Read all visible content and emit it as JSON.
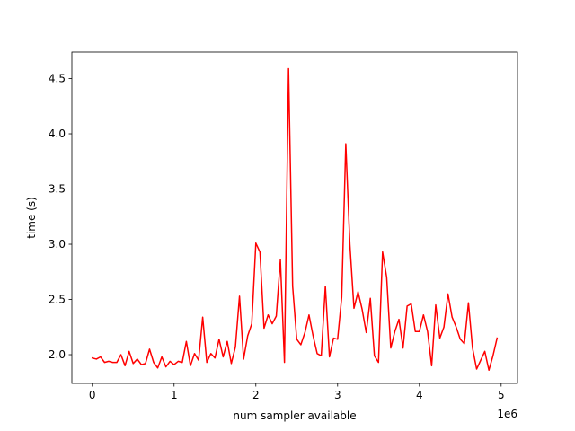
{
  "chart_data": {
    "type": "line",
    "title": "",
    "xlabel": "num sampler available",
    "ylabel": "time (s)",
    "x_offset_label": "1e6",
    "xlim": [
      -0.25,
      5.2
    ],
    "ylim": [
      1.74,
      4.74
    ],
    "x_ticks": [
      0,
      1,
      2,
      3,
      4,
      5
    ],
    "x_tick_labels": [
      "0",
      "1",
      "2",
      "3",
      "4",
      "5"
    ],
    "y_ticks": [
      2.0,
      2.5,
      3.0,
      3.5,
      4.0,
      4.5
    ],
    "y_tick_labels": [
      "2.0",
      "2.5",
      "3.0",
      "3.5",
      "4.0",
      "4.5"
    ],
    "grid": false,
    "line_color": "#ff0000",
    "series": [
      {
        "x": [
          0.0,
          0.05,
          0.1,
          0.15,
          0.2,
          0.25,
          0.3,
          0.35,
          0.4,
          0.45,
          0.5,
          0.55,
          0.6,
          0.65,
          0.7,
          0.75,
          0.8,
          0.85,
          0.9,
          0.95,
          1.0,
          1.05,
          1.1,
          1.15,
          1.2,
          1.25,
          1.3,
          1.35,
          1.4,
          1.45,
          1.5,
          1.55,
          1.6,
          1.65,
          1.7,
          1.75,
          1.8,
          1.85,
          1.9,
          1.95,
          2.0,
          2.05,
          2.1,
          2.15,
          2.2,
          2.25,
          2.3,
          2.35,
          2.4,
          2.45,
          2.5,
          2.55,
          2.6,
          2.65,
          2.7,
          2.75,
          2.8,
          2.85,
          2.9,
          2.95,
          3.0,
          3.05,
          3.1,
          3.15,
          3.2,
          3.25,
          3.3,
          3.35,
          3.4,
          3.45,
          3.5,
          3.55,
          3.6,
          3.65,
          3.7,
          3.75,
          3.8,
          3.85,
          3.9,
          3.95,
          4.0,
          4.05,
          4.1,
          4.15,
          4.2,
          4.25,
          4.3,
          4.35,
          4.4,
          4.45,
          4.5,
          4.55,
          4.6,
          4.65,
          4.7,
          4.75,
          4.8,
          4.85,
          4.9,
          4.95
        ],
        "y": [
          1.97,
          1.96,
          1.98,
          1.93,
          1.94,
          1.93,
          1.93,
          2.0,
          1.9,
          2.03,
          1.92,
          1.96,
          1.91,
          1.92,
          2.05,
          1.93,
          1.88,
          1.98,
          1.89,
          1.94,
          1.91,
          1.94,
          1.93,
          2.12,
          1.9,
          2.01,
          1.95,
          2.34,
          1.93,
          2.01,
          1.97,
          2.14,
          1.98,
          2.12,
          1.92,
          2.07,
          2.53,
          1.96,
          2.17,
          2.28,
          3.01,
          2.93,
          2.24,
          2.36,
          2.28,
          2.35,
          2.86,
          1.93,
          4.59,
          2.62,
          2.14,
          2.09,
          2.2,
          2.36,
          2.17,
          2.01,
          1.99,
          2.62,
          1.98,
          2.15,
          2.14,
          2.52,
          3.91,
          3.0,
          2.42,
          2.57,
          2.41,
          2.2,
          2.51,
          1.99,
          1.93,
          2.93,
          2.7,
          2.06,
          2.21,
          2.32,
          2.06,
          2.44,
          2.46,
          2.21,
          2.21,
          2.36,
          2.21,
          1.9,
          2.45,
          2.15,
          2.25,
          2.55,
          2.34,
          2.25,
          2.14,
          2.1,
          2.47,
          2.06,
          1.87,
          1.95,
          2.03,
          1.86,
          1.99,
          2.15
        ]
      }
    ]
  }
}
